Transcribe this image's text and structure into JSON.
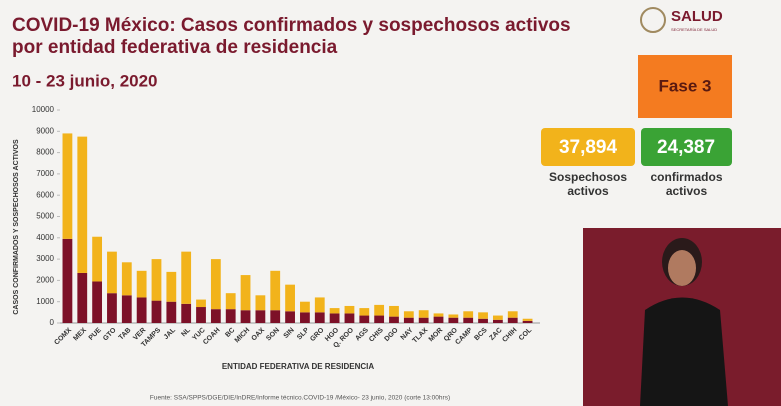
{
  "header": {
    "title_line1": "COVID-19 México: Casos confirmados y sospechosos activos",
    "title_line2": "por entidad federativa de residencia",
    "date": "10 - 23 junio, 2020"
  },
  "logo": {
    "name": "SALUD",
    "subtitle": "SECRETARÍA DE SALUD"
  },
  "phase": "Fase 3",
  "cards": [
    {
      "value": "37,894",
      "label": "Sospechosos activos"
    },
    {
      "value": "24,387",
      "label": "confirmados activos"
    }
  ],
  "chart_data": {
    "type": "bar",
    "stacked": true,
    "ylabel": "CASOS CONFIRMADOS Y SOSPECHOSOS ACTIVOS",
    "xlabel": "ENTIDAD FEDERATIVA DE RESIDENCIA",
    "categories": [
      "COMX",
      "MEX",
      "PUE",
      "GTO",
      "TAB",
      "VER",
      "TAMPS",
      "JAL",
      "NL",
      "YUC",
      "COAH",
      "BC",
      "MICH",
      "OAX",
      "SON",
      "SIN",
      "SLP",
      "GRO",
      "HGO",
      "Q. ROO",
      "AGS",
      "CHIS",
      "DGO",
      "NAY",
      "TLAX",
      "MOR",
      "QRO",
      "CAMP",
      "BCS",
      "ZAC",
      "CHIH",
      "COL"
    ],
    "series": [
      {
        "color": "#7d1128",
        "values": [
          3950,
          2350,
          1950,
          1400,
          1300,
          1200,
          1050,
          1000,
          900,
          750,
          650,
          650,
          600,
          600,
          600,
          550,
          500,
          500,
          450,
          450,
          350,
          350,
          300,
          250,
          250,
          300,
          250,
          250,
          200,
          150,
          250,
          100
        ]
      },
      {
        "color": "#f2b31b",
        "values": [
          4950,
          6400,
          2100,
          1950,
          1550,
          1250,
          1950,
          1400,
          2450,
          350,
          2350,
          750,
          1650,
          700,
          1850,
          1250,
          500,
          700,
          250,
          350,
          350,
          500,
          500,
          300,
          350,
          150,
          150,
          300,
          300,
          200,
          300,
          100
        ]
      }
    ],
    "ylim": [
      0,
      10000
    ],
    "yticks": [
      0,
      1000,
      2000,
      3000,
      4000,
      5000,
      6000,
      7000,
      8000,
      9000,
      10000
    ],
    "grid": false
  },
  "footer": {
    "source": "Fuente: SSA/SPPS/DGE/DIE/InDRE/Informe técnico.COVID-19 /México- 23 junio, 2020 (corte 13:00hrs)"
  }
}
